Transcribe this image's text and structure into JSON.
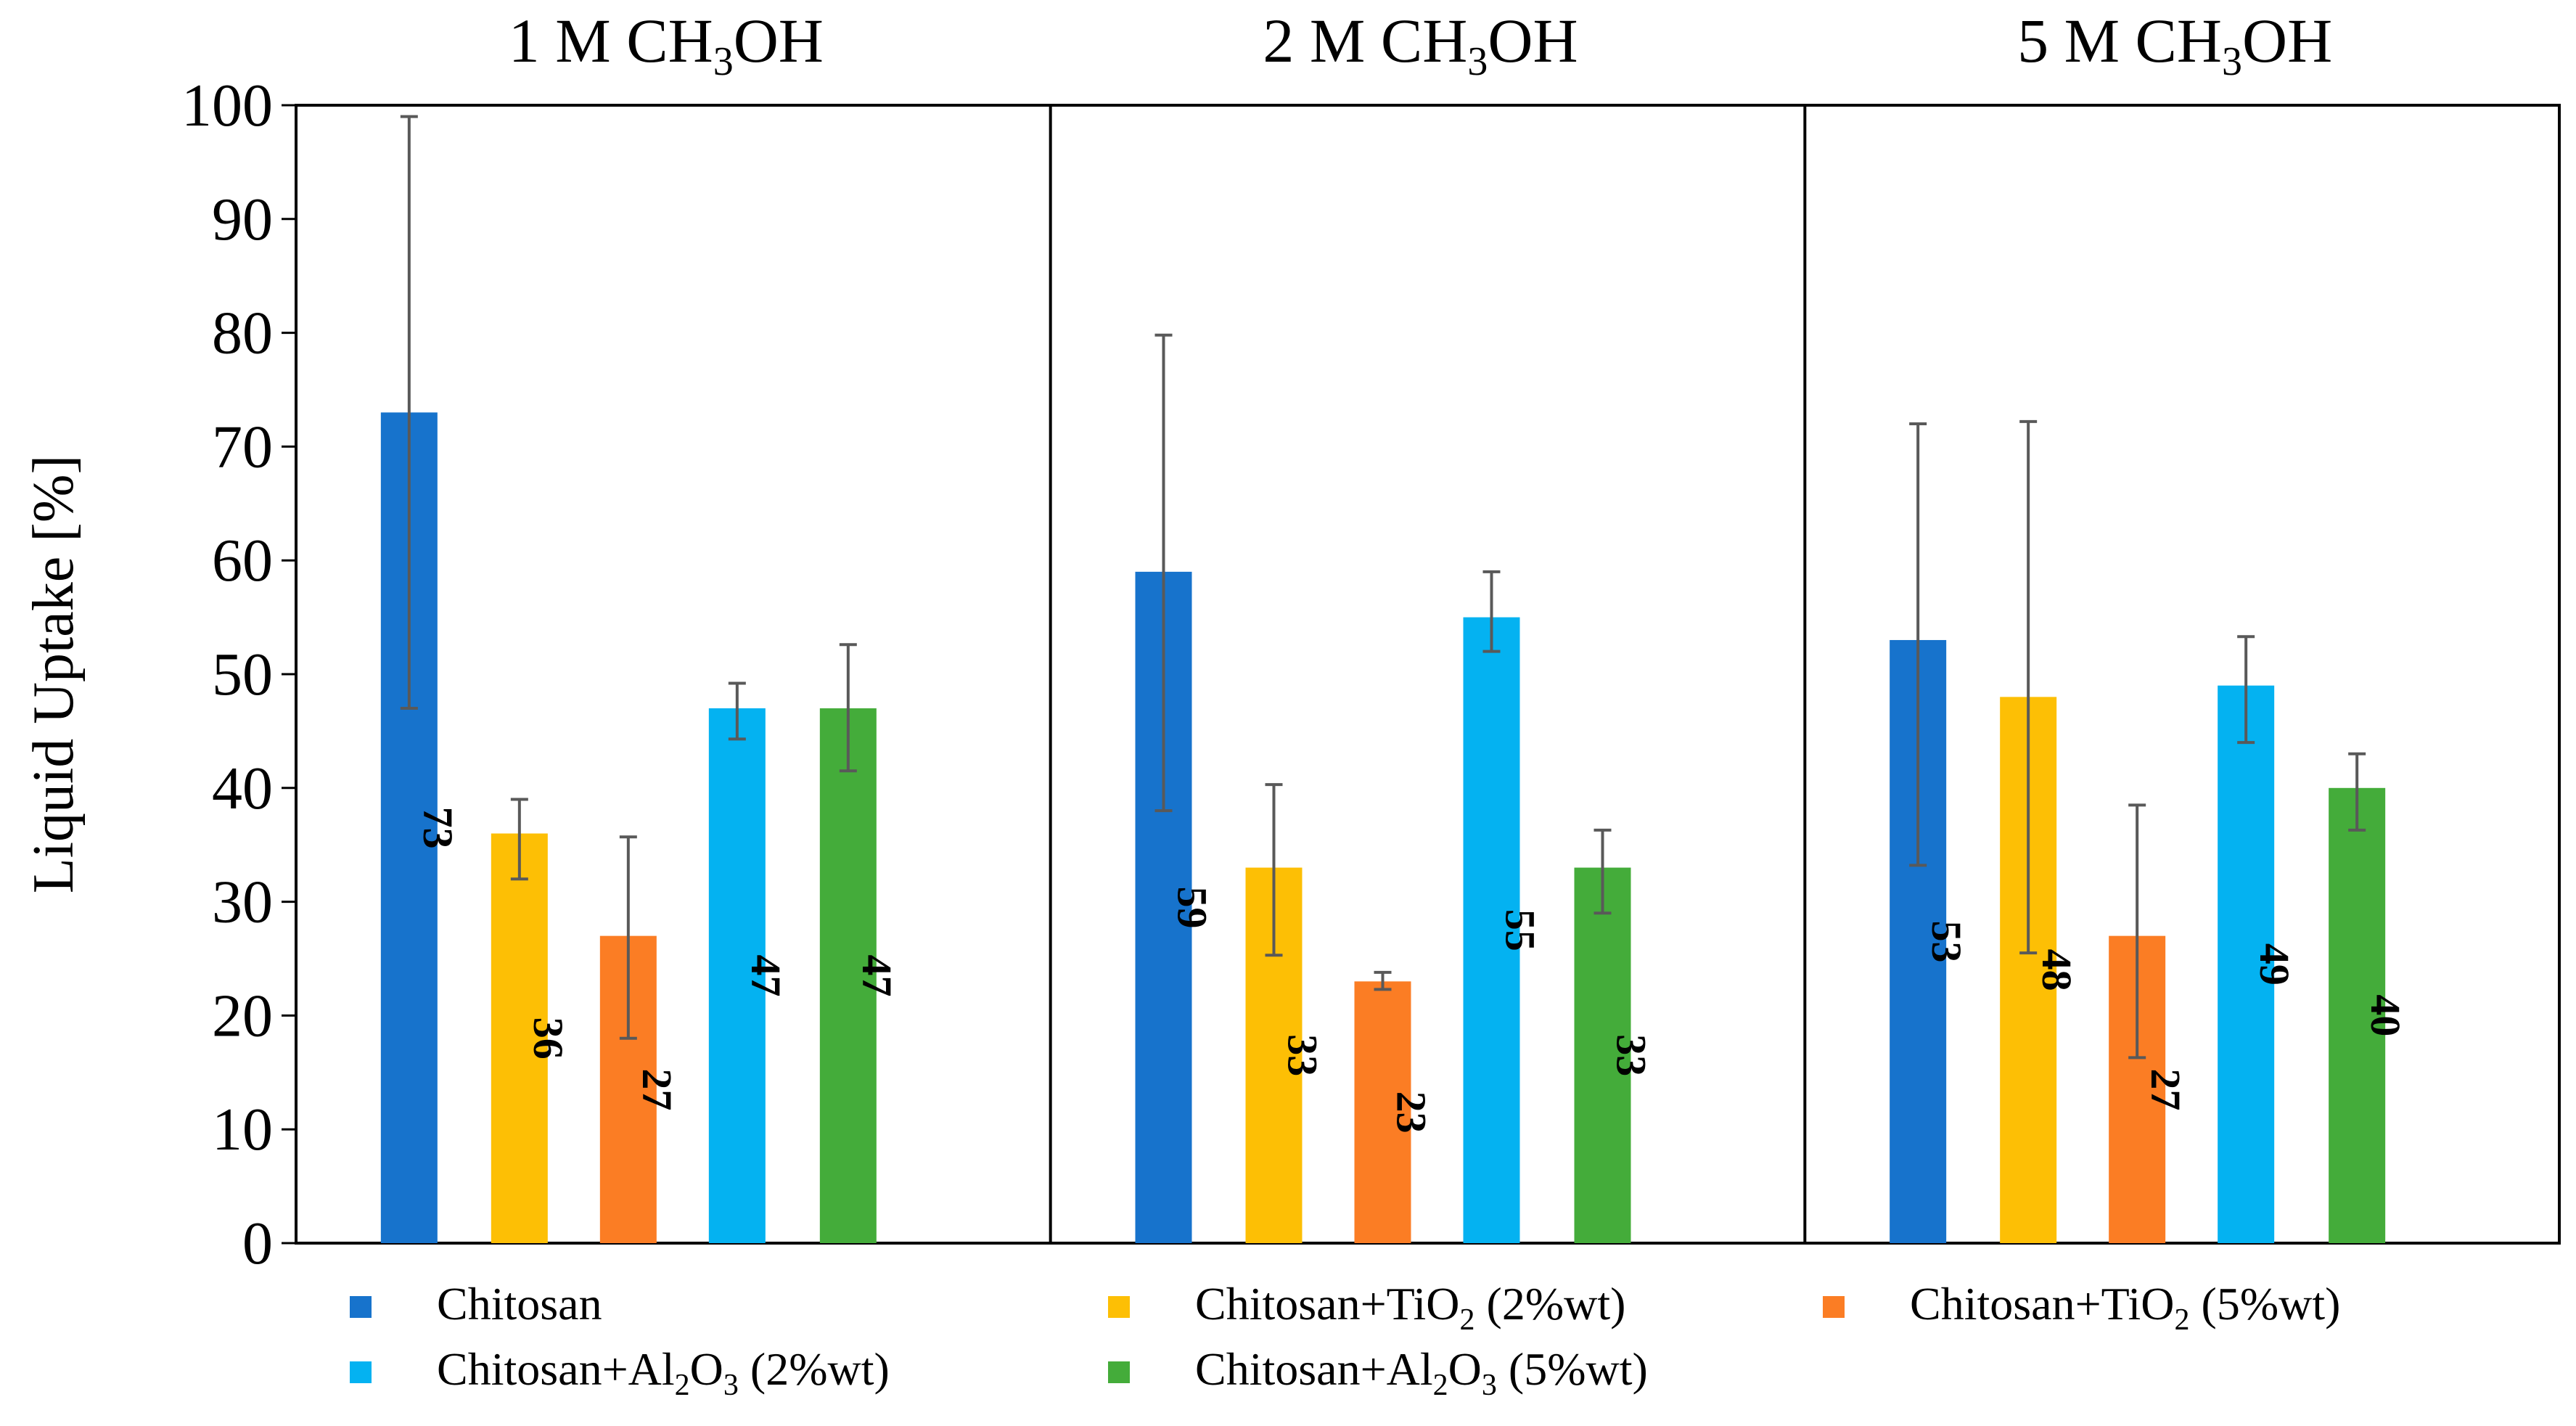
{
  "chart_data": {
    "type": "bar",
    "ylabel": "Liquid Uptake [%]",
    "ylim": [
      0,
      100
    ],
    "yticks": [
      0,
      10,
      20,
      30,
      40,
      50,
      60,
      70,
      80,
      90,
      100
    ],
    "grid": false,
    "legend_position": "bottom",
    "panels": [
      {
        "title": "1 M CH3OH",
        "title_prefix": "1 M CH",
        "title_sub": "3",
        "title_suffix": "OH",
        "values": [
          73,
          36,
          27,
          47,
          47
        ],
        "labels": [
          "73",
          "36",
          "27",
          "47",
          "47"
        ],
        "err_low": [
          47,
          32,
          18,
          44.3,
          41.5
        ],
        "err_high": [
          99,
          39,
          35.7,
          49.2,
          52.6
        ]
      },
      {
        "title": "2 M CH3OH",
        "title_prefix": "2 M CH",
        "title_sub": "3",
        "title_suffix": "OH",
        "values": [
          59,
          33,
          23,
          55,
          33
        ],
        "labels": [
          "59",
          "33",
          "23",
          "55",
          "33"
        ],
        "err_low": [
          38,
          25.3,
          22.3,
          52,
          29
        ],
        "err_high": [
          79.8,
          40.3,
          23.8,
          59,
          36.3
        ]
      },
      {
        "title": "5 M CH3OH",
        "title_prefix": "5 M CH",
        "title_sub": "3",
        "title_suffix": "OH",
        "values": [
          53,
          48,
          27,
          49,
          40
        ],
        "labels": [
          "53",
          "48",
          "27",
          "49",
          "40"
        ],
        "err_low": [
          33.2,
          25.5,
          16.3,
          44,
          36.3
        ],
        "err_high": [
          72,
          72.2,
          38.5,
          53.3,
          43
        ]
      }
    ],
    "series": [
      {
        "name": "Chitosan",
        "color": "#1773CC",
        "prefix": "Chitosan",
        "sub": "",
        "suffix": ""
      },
      {
        "name": "Chitosan+TiO2 (2%wt)",
        "color": "#FDBF05",
        "prefix": "Chitosan+TiO",
        "sub": "2",
        "suffix": " (2%wt)"
      },
      {
        "name": "Chitosan+TiO2 (5%wt)",
        "color": "#FB7D24",
        "prefix": "Chitosan+TiO",
        "sub": "2",
        "suffix": " (5%wt)"
      },
      {
        "name": "Chitosan+Al2O3 (2%wt)",
        "color": "#04B2F1",
        "prefix": "Chitosan+Al",
        "sub": "2",
        "mid": "O",
        "sub2": "3",
        "suffix": " (2%wt)"
      },
      {
        "name": "Chitosan+Al2O3 (5%wt)",
        "color": "#44AC3A",
        "prefix": "Chitosan+Al",
        "sub": "2",
        "mid": "O",
        "sub2": "3",
        "suffix": " (5%wt)"
      }
    ]
  }
}
